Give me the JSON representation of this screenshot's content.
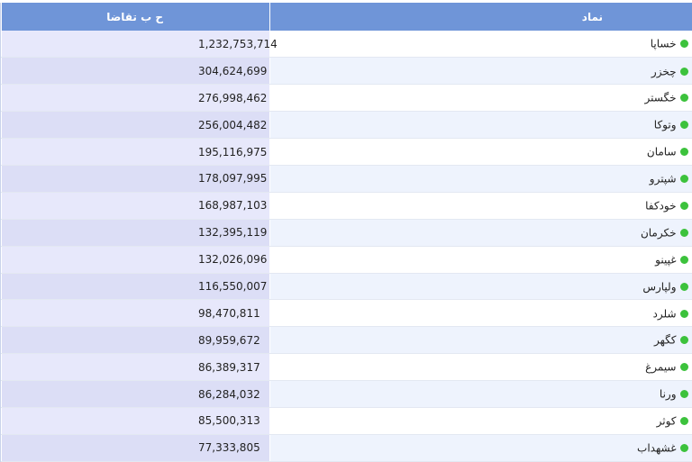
{
  "header": {
    "symbol_label": "نماد",
    "value_label": "ح ب تقاضا"
  },
  "colors": {
    "header": "#6f95d8",
    "status_dot": "#3cc23c"
  },
  "rows": [
    {
      "symbol": "خساپا",
      "value": "1,232,753,714"
    },
    {
      "symbol": "چخزر",
      "value": "304,624,699"
    },
    {
      "symbol": "خگستر",
      "value": "276,998,462"
    },
    {
      "symbol": "وتوکا",
      "value": "256,004,482"
    },
    {
      "symbol": "سامان",
      "value": "195,116,975"
    },
    {
      "symbol": "شپترو",
      "value": "178,097,995"
    },
    {
      "symbol": "خودکفا",
      "value": "168,987,103"
    },
    {
      "symbol": "خکرمان",
      "value": "132,395,119"
    },
    {
      "symbol": "غپینو",
      "value": "132,026,096"
    },
    {
      "symbol": "ولپارس",
      "value": "116,550,007"
    },
    {
      "symbol": "شلرد",
      "value": "98,470,811"
    },
    {
      "symbol": "کگهر",
      "value": "89,959,672"
    },
    {
      "symbol": "سیمرغ",
      "value": "86,389,317"
    },
    {
      "symbol": "ورنا",
      "value": "86,284,032"
    },
    {
      "symbol": "کوثر",
      "value": "85,500,313"
    },
    {
      "symbol": "غشهداب",
      "value": "77,333,805"
    }
  ]
}
